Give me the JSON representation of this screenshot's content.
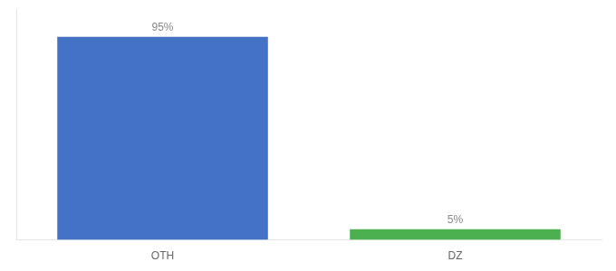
{
  "chart_data": {
    "type": "bar",
    "categories": [
      "OTH",
      "DZ"
    ],
    "values": [
      95,
      5
    ],
    "colors": [
      "#4472c4",
      "#4caf50"
    ],
    "ylim": [
      0,
      108
    ],
    "grid": false,
    "data_labels": true,
    "value_labels": [
      "95%",
      "5%"
    ],
    "tick_labels": "x"
  }
}
